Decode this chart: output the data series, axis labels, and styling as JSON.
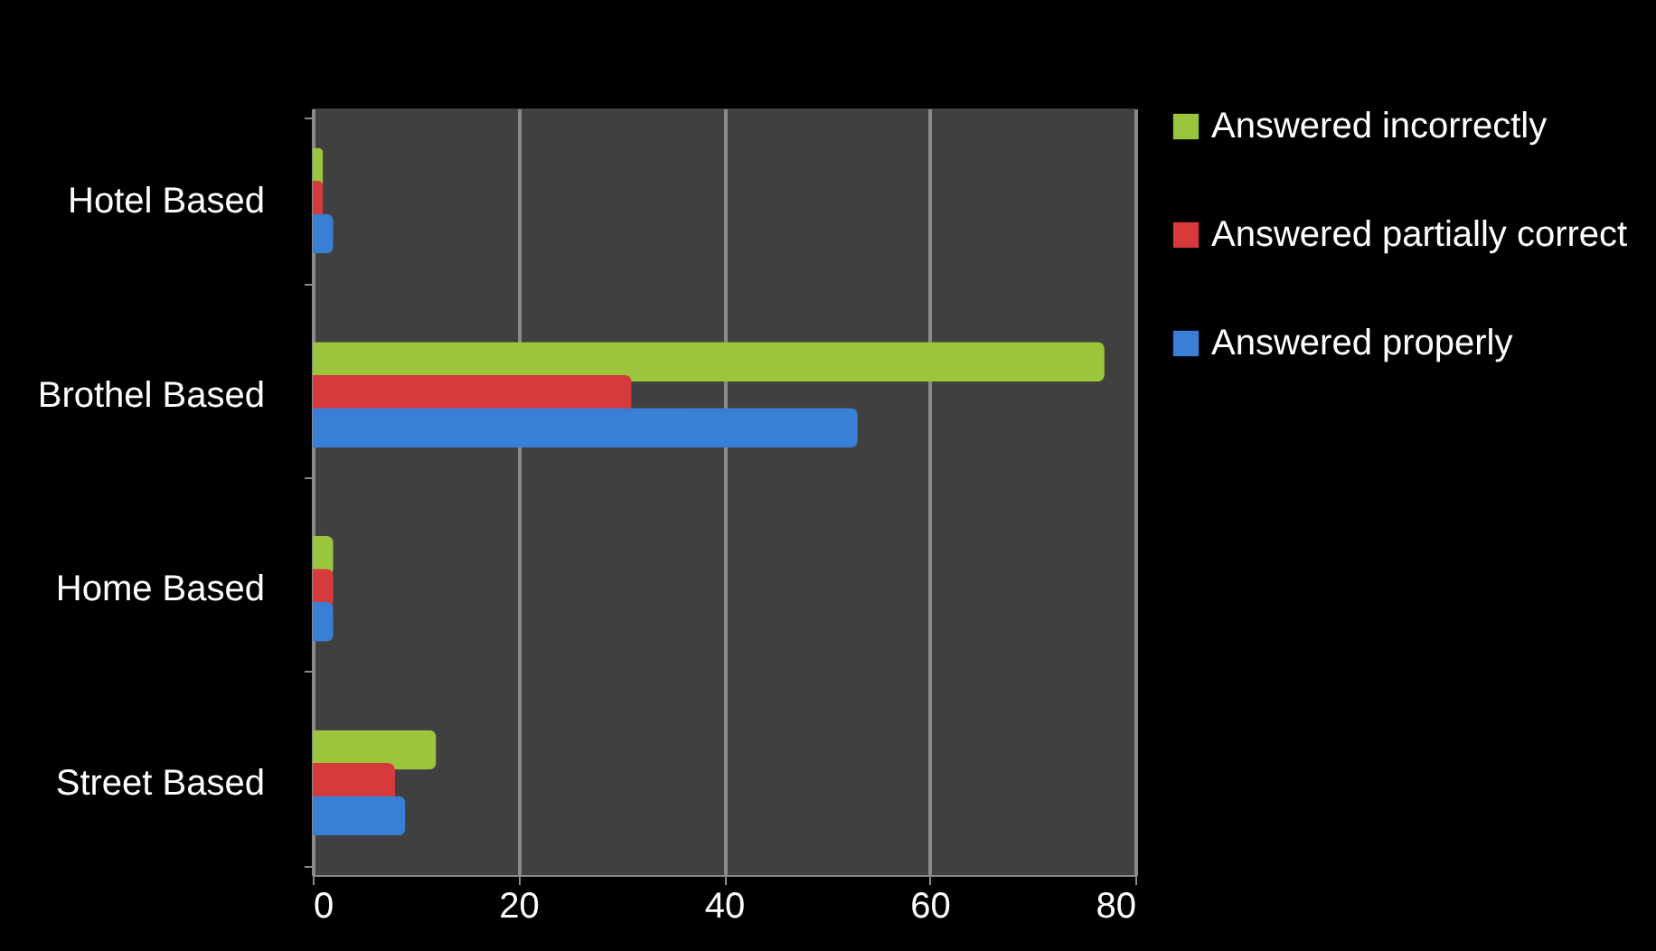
{
  "chart_data": {
    "type": "bar",
    "orientation": "horizontal",
    "categories": [
      "Hotel Based",
      "Brothel Based",
      "Home Based",
      "Street Based"
    ],
    "series": [
      {
        "name": "Answered incorrectly",
        "color": "#9bc53d",
        "values": [
          1,
          77,
          2,
          12
        ]
      },
      {
        "name": "Answered partially correct",
        "color": "#d63a3a",
        "values": [
          1,
          31,
          2,
          8
        ]
      },
      {
        "name": "Answered properly",
        "color": "#3a7fd6",
        "values": [
          2,
          53,
          2,
          9
        ]
      }
    ],
    "xlim": [
      0,
      80
    ],
    "xticks": [
      0,
      20,
      40,
      60,
      80
    ],
    "grid": "x",
    "legend": "right"
  }
}
